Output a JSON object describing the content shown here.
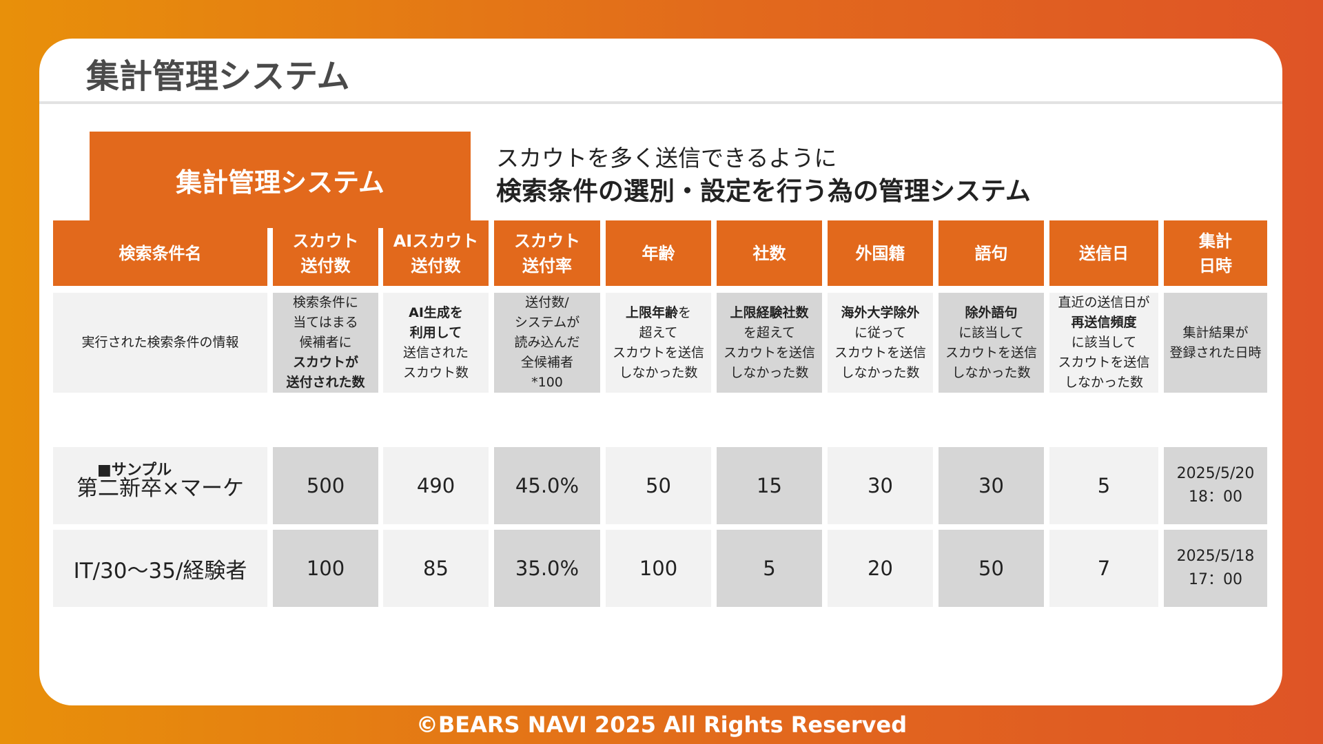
{
  "page": {
    "title": "集計管理システム"
  },
  "hero": {
    "box_label": "集計管理システム",
    "line1": "スカウトを多く送信できるように",
    "line2": "検索条件の選別・設定を行う為の管理システム"
  },
  "table": {
    "headers": [
      [
        "検索条件名"
      ],
      [
        "スカウト",
        "送付数"
      ],
      [
        "AIスカウト",
        "送付数"
      ],
      [
        "スカウト",
        "送付率"
      ],
      [
        "年齢"
      ],
      [
        "社数"
      ],
      [
        "外国籍"
      ],
      [
        "語句"
      ],
      [
        "送信日"
      ],
      [
        "集計",
        "日時"
      ]
    ],
    "descriptions": [
      [
        {
          "t": "実行された検索条件の情報",
          "b": false
        }
      ],
      [
        {
          "t": "検索条件に",
          "b": false
        },
        {
          "t": "当てはまる",
          "b": false
        },
        {
          "t": "候補者に",
          "b": false
        },
        {
          "t": "スカウトが",
          "b": true
        },
        {
          "t": "送付された数",
          "b": true
        }
      ],
      [
        {
          "t": "AI生成を",
          "b": true
        },
        {
          "t": "利用して",
          "b": true
        },
        {
          "t": "送信された",
          "b": false
        },
        {
          "t": "スカウト数",
          "b": false
        }
      ],
      [
        {
          "t": "送付数/",
          "b": false
        },
        {
          "t": "システムが",
          "b": false
        },
        {
          "t": "読み込んだ",
          "b": false
        },
        {
          "t": "全候補者",
          "b": false
        },
        {
          "t": "*100",
          "b": false
        }
      ],
      [
        {
          "t": "上限年齢を",
          "b": false,
          "bold_part": "上限年齢",
          "rest": "を"
        },
        {
          "t": "超えて",
          "b": false
        },
        {
          "t": "スカウトを送信",
          "b": false
        },
        {
          "t": "しなかった数",
          "b": false
        }
      ],
      [
        {
          "t": "上限経験社数",
          "b": true
        },
        {
          "t": "を超えて",
          "b": false
        },
        {
          "t": "スカウトを送信",
          "b": false
        },
        {
          "t": "しなかった数",
          "b": false
        }
      ],
      [
        {
          "t": "海外大学除外",
          "b": true
        },
        {
          "t": "に従って",
          "b": false
        },
        {
          "t": "スカウトを送信",
          "b": false
        },
        {
          "t": "しなかった数",
          "b": false
        }
      ],
      [
        {
          "t": "除外語句",
          "b": true
        },
        {
          "t": "に該当して",
          "b": false
        },
        {
          "t": "スカウトを送信",
          "b": false
        },
        {
          "t": "しなかった数",
          "b": false
        }
      ],
      [
        {
          "t": "直近の送信日が",
          "b": false
        },
        {
          "t": "再送信頻度",
          "b": true
        },
        {
          "t": "に該当して",
          "b": false
        },
        {
          "t": "スカウトを送信",
          "b": false
        },
        {
          "t": "しなかった数",
          "b": false
        }
      ],
      [
        {
          "t": "集計結果が",
          "b": false
        },
        {
          "t": "登録された日時",
          "b": false
        }
      ]
    ],
    "sample_label": "■サンプル",
    "rows": [
      [
        "第二新卒×マーケ",
        "500",
        "490",
        "45.0%",
        "50",
        "15",
        "30",
        "30",
        "5",
        [
          "2025/5/20",
          "18：00"
        ]
      ],
      [
        "IT/30〜35/経験者",
        "100",
        "85",
        "35.0%",
        "100",
        "5",
        "20",
        "50",
        "7",
        [
          "2025/5/18",
          "17：00"
        ]
      ]
    ]
  },
  "footer": {
    "text": "©BEARS NAVI 2025 All Rights Reserved"
  },
  "colors": {
    "accent": "#e2691c",
    "cell_dark": "#d6d6d6",
    "cell_light": "#f2f2f2"
  }
}
